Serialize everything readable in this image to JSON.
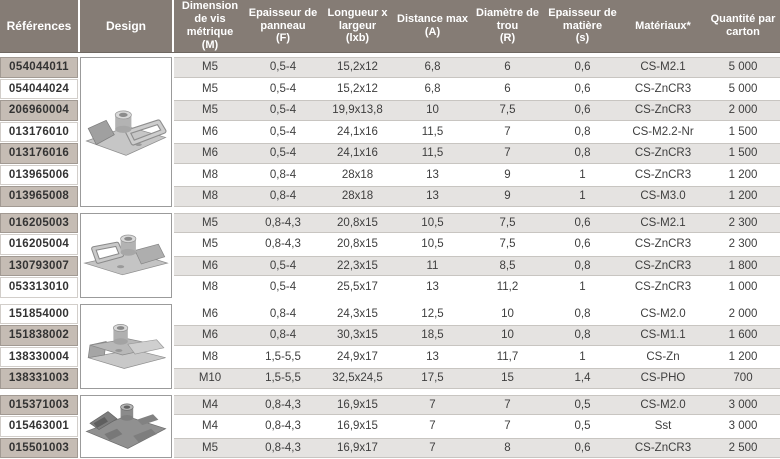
{
  "colors": {
    "header_bg": "#857c75",
    "header_text": "#ffffff",
    "reference_shaded_bg": "#c5bcb4",
    "row_shaded_bg": "#e5e3e1",
    "body_text": "#3e3e3e",
    "design_cell_border": "#9b9b9b"
  },
  "header": {
    "columns": [
      {
        "key": "reference",
        "label": "Références"
      },
      {
        "key": "design",
        "label": "Design"
      },
      {
        "key": "m",
        "label": "Dimension\nde vis\nmétrique\n(M)"
      },
      {
        "key": "f",
        "label": "Epaisseur de\npanneau\n(F)"
      },
      {
        "key": "lxb",
        "label": "Longueur x\nlargeur\n(lxb)"
      },
      {
        "key": "a",
        "label": "Distance max\n(A)"
      },
      {
        "key": "r",
        "label": "Diamètre de\ntrou\n(R)"
      },
      {
        "key": "s",
        "label": "Epaisseur de\nmatière\n(s)"
      },
      {
        "key": "material",
        "label": "Matériaux*"
      },
      {
        "key": "quantity",
        "label": "Quantité par\ncarton"
      }
    ]
  },
  "groups": [
    {
      "design_icon": "clip-nut-3d-render-1",
      "rows": [
        {
          "reference": "054044011",
          "m": "M5",
          "f": "0,5-4",
          "lxb": "15,2x12",
          "a": "6,8",
          "r": "6",
          "s": "0,6",
          "material": "CS-M2.1",
          "quantity": "5 000",
          "shaded": true
        },
        {
          "reference": "054044024",
          "m": "M5",
          "f": "0,5-4",
          "lxb": "15,2x12",
          "a": "6,8",
          "r": "6",
          "s": "0,6",
          "material": "CS-ZnCR3",
          "quantity": "5 000",
          "shaded": false
        },
        {
          "reference": "206960004",
          "m": "M5",
          "f": "0,5-4",
          "lxb": "19,9x13,8",
          "a": "10",
          "r": "7,5",
          "s": "0,6",
          "material": "CS-ZnCR3",
          "quantity": "2 000",
          "shaded": true
        },
        {
          "reference": "013176010",
          "m": "M6",
          "f": "0,5-4",
          "lxb": "24,1x16",
          "a": "11,5",
          "r": "7",
          "s": "0,8",
          "material": "CS-M2.2-Nr",
          "quantity": "1 500",
          "shaded": false
        },
        {
          "reference": "013176016",
          "m": "M6",
          "f": "0,5-4",
          "lxb": "24,1x16",
          "a": "11,5",
          "r": "7",
          "s": "0,8",
          "material": "CS-ZnCR3",
          "quantity": "1 500",
          "shaded": true
        },
        {
          "reference": "013965006",
          "m": "M8",
          "f": "0,8-4",
          "lxb": "28x18",
          "a": "13",
          "r": "9",
          "s": "1",
          "material": "CS-ZnCR3",
          "quantity": "1 200",
          "shaded": false
        },
        {
          "reference": "013965008",
          "m": "M8",
          "f": "0,8-4",
          "lxb": "28x18",
          "a": "13",
          "r": "9",
          "s": "1",
          "material": "CS-M3.0",
          "quantity": "1 200",
          "shaded": true
        }
      ]
    },
    {
      "design_icon": "clip-nut-3d-render-2",
      "rows": [
        {
          "reference": "016205003",
          "m": "M5",
          "f": "0,8-4,3",
          "lxb": "20,8x15",
          "a": "10,5",
          "r": "7,5",
          "s": "0,6",
          "material": "CS-M2.1",
          "quantity": "2 300",
          "shaded": true
        },
        {
          "reference": "016205004",
          "m": "M5",
          "f": "0,8-4,3",
          "lxb": "20,8x15",
          "a": "10,5",
          "r": "7,5",
          "s": "0,6",
          "material": "CS-ZnCR3",
          "quantity": "2 300",
          "shaded": false
        },
        {
          "reference": "130793007",
          "m": "M6",
          "f": "0,5-4",
          "lxb": "22,3x15",
          "a": "11",
          "r": "8,5",
          "s": "0,8",
          "material": "CS-ZnCR3",
          "quantity": "1 800",
          "shaded": true
        },
        {
          "reference": "053313010",
          "m": "M8",
          "f": "0,5-4",
          "lxb": "25,5x17",
          "a": "13",
          "r": "11,2",
          "s": "1",
          "material": "CS-ZnCR3",
          "quantity": "1 000",
          "shaded": false
        }
      ]
    },
    {
      "design_icon": "clip-nut-3d-render-3",
      "rows": [
        {
          "reference": "151854000",
          "m": "M6",
          "f": "0,8-4",
          "lxb": "24,3x15",
          "a": "12,5",
          "r": "10",
          "s": "0,8",
          "material": "CS-M2.0",
          "quantity": "2 000",
          "shaded": false
        },
        {
          "reference": "151838002",
          "m": "M6",
          "f": "0,8-4",
          "lxb": "30,3x15",
          "a": "18,5",
          "r": "10",
          "s": "0,8",
          "material": "CS-M1.1",
          "quantity": "1 600",
          "shaded": true
        },
        {
          "reference": "138330004",
          "m": "M8",
          "f": "1,5-5,5",
          "lxb": "24,9x17",
          "a": "13",
          "r": "11,7",
          "s": "1",
          "material": "CS-Zn",
          "quantity": "1 200",
          "shaded": false
        },
        {
          "reference": "138331003",
          "m": "M10",
          "f": "1,5-5,5",
          "lxb": "32,5x24,5",
          "a": "17,5",
          "r": "15",
          "s": "1,4",
          "material": "CS-PHO",
          "quantity": "700",
          "shaded": true
        }
      ]
    },
    {
      "design_icon": "clip-nut-3d-render-4",
      "rows": [
        {
          "reference": "015371003",
          "m": "M4",
          "f": "0,8-4,3",
          "lxb": "16,9x15",
          "a": "7",
          "r": "7",
          "s": "0,5",
          "material": "CS-M2.0",
          "quantity": "3 000",
          "shaded": true
        },
        {
          "reference": "015463001",
          "m": "M4",
          "f": "0,8-4,3",
          "lxb": "16,9x15",
          "a": "7",
          "r": "7",
          "s": "0,5",
          "material": "Sst",
          "quantity": "3 000",
          "shaded": false
        },
        {
          "reference": "015501003",
          "m": "M5",
          "f": "0,8-4,3",
          "lxb": "16,9x17",
          "a": "7",
          "r": "8",
          "s": "0,6",
          "material": "CS-ZnCR3",
          "quantity": "2 500",
          "shaded": true
        }
      ]
    }
  ]
}
